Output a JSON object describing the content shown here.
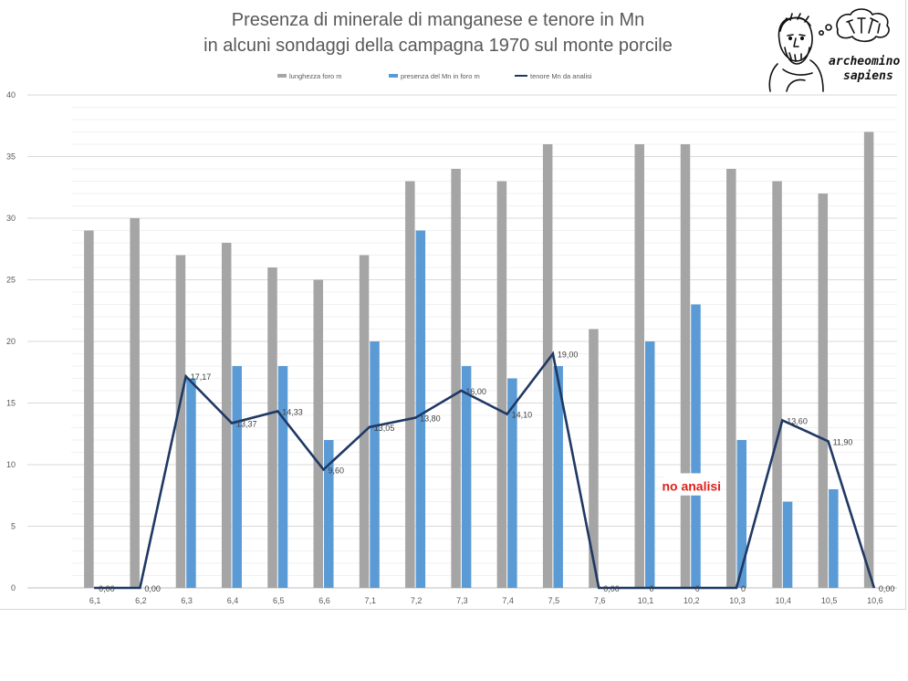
{
  "chart_data": {
    "type": "bar",
    "title_lines": [
      "Presenza di minerale di manganese e tenore in Mn",
      "in alcuni sondaggi  della campagna 1970 sul monte porcile"
    ],
    "categories": [
      "6,1",
      "6,2",
      "6,3",
      "6,4",
      "6,5",
      "6,6",
      "7,1",
      "7,2",
      "7,3",
      "7,4",
      "7,5",
      "7,6",
      "10,1",
      "10,2",
      "10,3",
      "10,4",
      "10,5",
      "10,6"
    ],
    "ylim": [
      0,
      40
    ],
    "yticks": [
      "0",
      "5",
      "10",
      "15",
      "20",
      "25",
      "30",
      "35",
      "40"
    ],
    "grid": true,
    "legend_position": "top",
    "series": [
      {
        "name": "lunghezza foro m",
        "kind": "bar",
        "color": "#a5a5a5",
        "values": [
          29,
          30,
          27,
          28,
          26,
          25,
          27,
          33,
          34,
          33,
          36,
          21,
          36,
          36,
          34,
          33,
          32,
          37
        ]
      },
      {
        "name": "presenza del Mn in foro m",
        "kind": "bar",
        "color": "#5b9bd5",
        "values": [
          null,
          null,
          17,
          18,
          18,
          12,
          20,
          29,
          18,
          17,
          18,
          null,
          20,
          23,
          12,
          7,
          8,
          null
        ]
      },
      {
        "name": "tenore Mn da analisi",
        "kind": "line",
        "color": "#1f3864",
        "values": [
          0,
          0,
          17.17,
          13.37,
          14.33,
          9.6,
          13.05,
          13.8,
          16,
          14.1,
          19,
          0,
          0,
          0,
          0,
          13.6,
          11.9,
          0
        ],
        "labels": [
          "0,00",
          "0,00",
          "17,17",
          "13,37",
          "14,33",
          "9,60",
          "13,05",
          "13,80",
          "16,00",
          "14,10",
          "19,00",
          "0,00",
          "0",
          "0",
          "0",
          "13,60",
          "11,90",
          "0,00"
        ]
      }
    ],
    "annotation": {
      "text": "no analisi",
      "color": "#e0201b"
    }
  },
  "logo": {
    "line1": "archeomino",
    "line2": "sapiens"
  }
}
